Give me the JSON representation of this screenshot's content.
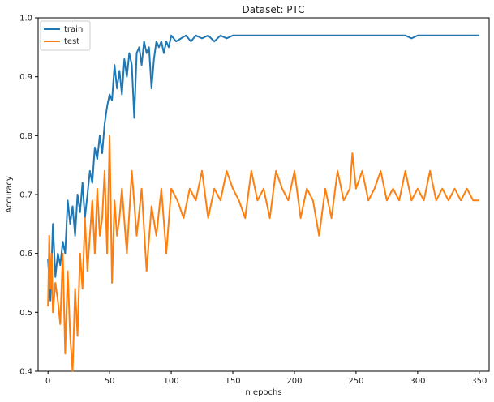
{
  "chart_data": {
    "type": "line",
    "title": "Dataset: PTC",
    "xlabel": "n epochs",
    "ylabel": "Accuracy",
    "xlim": [
      -8,
      358
    ],
    "ylim": [
      0.4,
      1.0
    ],
    "xticks": [
      0,
      50,
      100,
      150,
      200,
      250,
      300,
      350
    ],
    "yticks": [
      0.4,
      0.5,
      0.6,
      0.7,
      0.8,
      0.9,
      1.0
    ],
    "xtick_labels": [
      "0",
      "50",
      "100",
      "150",
      "200",
      "250",
      "300",
      "350"
    ],
    "ytick_labels": [
      "0.4",
      "0.5",
      "0.6",
      "0.7",
      "0.8",
      "0.9",
      "1.0"
    ],
    "grid": false,
    "legend_position": "top-left",
    "series": [
      {
        "name": "train",
        "color": "#1f77b4",
        "x": [
          0,
          2,
          4,
          6,
          8,
          10,
          12,
          14,
          16,
          18,
          20,
          22,
          24,
          26,
          28,
          30,
          32,
          34,
          36,
          38,
          40,
          42,
          44,
          46,
          48,
          50,
          52,
          54,
          56,
          58,
          60,
          62,
          64,
          66,
          68,
          70,
          72,
          74,
          76,
          78,
          80,
          82,
          84,
          86,
          88,
          90,
          92,
          94,
          96,
          98,
          100,
          104,
          108,
          112,
          116,
          120,
          125,
          130,
          135,
          140,
          145,
          150,
          160,
          170,
          180,
          190,
          200,
          210,
          220,
          230,
          240,
          250,
          260,
          270,
          280,
          290,
          295,
          300,
          310,
          320,
          330,
          340,
          350
        ],
        "y": [
          0.59,
          0.52,
          0.65,
          0.56,
          0.6,
          0.58,
          0.62,
          0.6,
          0.69,
          0.65,
          0.68,
          0.63,
          0.7,
          0.67,
          0.72,
          0.66,
          0.7,
          0.74,
          0.72,
          0.78,
          0.76,
          0.8,
          0.77,
          0.82,
          0.85,
          0.87,
          0.86,
          0.92,
          0.88,
          0.91,
          0.87,
          0.93,
          0.9,
          0.94,
          0.92,
          0.83,
          0.94,
          0.95,
          0.92,
          0.96,
          0.94,
          0.95,
          0.88,
          0.93,
          0.96,
          0.95,
          0.96,
          0.94,
          0.96,
          0.95,
          0.97,
          0.96,
          0.965,
          0.97,
          0.96,
          0.97,
          0.965,
          0.97,
          0.96,
          0.97,
          0.965,
          0.97,
          0.97,
          0.97,
          0.97,
          0.97,
          0.97,
          0.97,
          0.97,
          0.97,
          0.97,
          0.97,
          0.97,
          0.97,
          0.97,
          0.97,
          0.965,
          0.97,
          0.97,
          0.97,
          0.97,
          0.97,
          0.97
        ]
      },
      {
        "name": "test",
        "color": "#ff7f0e",
        "x": [
          0,
          1,
          2,
          3,
          4,
          6,
          8,
          10,
          12,
          14,
          16,
          18,
          20,
          22,
          24,
          26,
          28,
          30,
          32,
          34,
          36,
          38,
          40,
          42,
          44,
          46,
          48,
          50,
          52,
          54,
          56,
          58,
          60,
          64,
          68,
          72,
          76,
          80,
          84,
          88,
          92,
          96,
          100,
          105,
          110,
          115,
          120,
          125,
          130,
          135,
          140,
          145,
          150,
          155,
          160,
          165,
          170,
          175,
          180,
          185,
          190,
          195,
          200,
          205,
          210,
          215,
          220,
          225,
          230,
          235,
          240,
          245,
          247,
          250,
          255,
          260,
          265,
          270,
          275,
          280,
          285,
          290,
          295,
          300,
          305,
          310,
          315,
          320,
          325,
          330,
          335,
          340,
          345,
          350
        ],
        "y": [
          0.51,
          0.63,
          0.54,
          0.6,
          0.5,
          0.55,
          0.52,
          0.48,
          0.6,
          0.43,
          0.57,
          0.46,
          0.4,
          0.54,
          0.46,
          0.6,
          0.54,
          0.66,
          0.57,
          0.63,
          0.69,
          0.6,
          0.71,
          0.63,
          0.66,
          0.74,
          0.6,
          0.8,
          0.55,
          0.69,
          0.63,
          0.66,
          0.71,
          0.6,
          0.74,
          0.63,
          0.71,
          0.57,
          0.68,
          0.63,
          0.71,
          0.6,
          0.71,
          0.69,
          0.66,
          0.71,
          0.69,
          0.74,
          0.66,
          0.71,
          0.69,
          0.74,
          0.71,
          0.69,
          0.66,
          0.74,
          0.69,
          0.71,
          0.66,
          0.74,
          0.71,
          0.69,
          0.74,
          0.66,
          0.71,
          0.69,
          0.63,
          0.71,
          0.66,
          0.74,
          0.69,
          0.71,
          0.77,
          0.71,
          0.74,
          0.69,
          0.71,
          0.74,
          0.69,
          0.71,
          0.69,
          0.74,
          0.69,
          0.71,
          0.69,
          0.74,
          0.69,
          0.71,
          0.69,
          0.71,
          0.69,
          0.71,
          0.69,
          0.69
        ]
      }
    ]
  }
}
